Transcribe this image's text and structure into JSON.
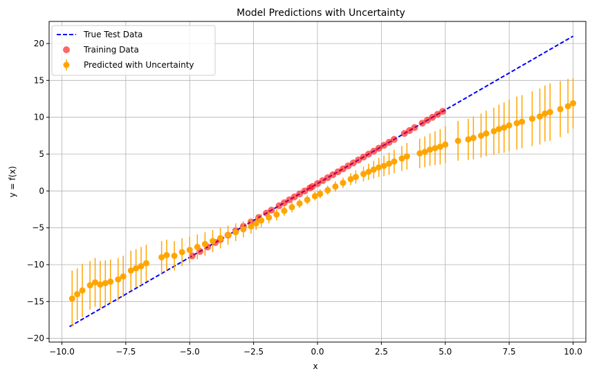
{
  "chart_data": {
    "type": "scatter",
    "title": "Model Predictions with Uncertainty",
    "xlabel": "x",
    "ylabel": "y = f(x)",
    "xlim": [
      -10.5,
      10.5
    ],
    "ylim": [
      -20.5,
      23
    ],
    "xticks": [
      -10.0,
      -7.5,
      -5.0,
      -2.5,
      0.0,
      2.5,
      5.0,
      7.5,
      10.0
    ],
    "xtick_labels": [
      "−10.0",
      "−7.5",
      "−5.0",
      "−2.5",
      "0.0",
      "2.5",
      "5.0",
      "7.5",
      "10.0"
    ],
    "yticks": [
      -20,
      -15,
      -10,
      -5,
      0,
      5,
      10,
      15,
      20
    ],
    "ytick_labels": [
      "−20",
      "−15",
      "−10",
      "−5",
      "0",
      "5",
      "10",
      "15",
      "20"
    ],
    "grid": true,
    "legend_position": "top-left",
    "colors": {
      "true_line": "#0000ff",
      "training": "#ff0000",
      "predicted": "#ffa500"
    },
    "legend": [
      {
        "name": "True Test Data",
        "kind": "line"
      },
      {
        "name": "Training Data",
        "kind": "scatter"
      },
      {
        "name": "Predicted with Uncertainty",
        "kind": "errorbar"
      }
    ],
    "true_line": {
      "name": "True Test Data",
      "x": [
        -9.7,
        10.0
      ],
      "y": [
        -18.4,
        21.0
      ]
    },
    "training": {
      "name": "Training Data",
      "x": [
        -4.9,
        -4.6,
        -4.3,
        -4.0,
        -3.8,
        -3.5,
        -3.2,
        -2.9,
        -2.6,
        -2.3,
        -2.0,
        -1.8,
        -1.5,
        -1.3,
        -1.1,
        -0.9,
        -0.7,
        -0.5,
        -0.3,
        -0.2,
        0.0,
        0.2,
        0.4,
        0.6,
        0.8,
        1.0,
        1.2,
        1.4,
        1.6,
        1.8,
        2.0,
        2.2,
        2.4,
        2.6,
        2.8,
        3.0,
        3.4,
        3.6,
        3.8,
        4.1,
        4.3,
        4.5,
        4.7,
        4.9
      ],
      "y": [
        -8.8,
        -8.2,
        -7.6,
        -7.0,
        -6.6,
        -6.0,
        -5.4,
        -4.8,
        -4.2,
        -3.6,
        -3.0,
        -2.6,
        -2.0,
        -1.6,
        -1.2,
        -0.8,
        -0.4,
        0.0,
        0.4,
        0.6,
        1.0,
        1.4,
        1.8,
        2.2,
        2.6,
        3.0,
        3.4,
        3.8,
        4.2,
        4.6,
        5.0,
        5.4,
        5.8,
        6.2,
        6.6,
        7.0,
        7.8,
        8.2,
        8.6,
        9.2,
        9.6,
        10.0,
        10.4,
        10.8
      ]
    },
    "predicted": {
      "name": "Predicted with Uncertainty",
      "x": [
        -9.6,
        -9.4,
        -9.2,
        -8.9,
        -8.7,
        -8.5,
        -8.3,
        -8.1,
        -7.8,
        -7.6,
        -7.3,
        -7.1,
        -6.9,
        -6.7,
        -6.1,
        -5.9,
        -5.6,
        -5.3,
        -5.0,
        -4.7,
        -4.4,
        -4.1,
        -3.8,
        -3.5,
        -3.2,
        -2.9,
        -2.6,
        -2.4,
        -2.2,
        -1.9,
        -1.6,
        -1.3,
        -1.0,
        -0.7,
        -0.4,
        -0.1,
        0.1,
        0.4,
        0.7,
        1.0,
        1.3,
        1.5,
        1.8,
        2.0,
        2.2,
        2.4,
        2.6,
        2.8,
        3.0,
        3.3,
        3.5,
        4.0,
        4.2,
        4.4,
        4.6,
        4.8,
        5.0,
        5.5,
        5.9,
        6.1,
        6.4,
        6.6,
        6.9,
        7.1,
        7.3,
        7.5,
        7.8,
        8.0,
        8.4,
        8.7,
        8.9,
        9.1,
        9.5,
        9.8,
        10.0
      ],
      "y": [
        -14.6,
        -14.0,
        -13.5,
        -12.8,
        -12.4,
        -12.7,
        -12.5,
        -12.3,
        -12.0,
        -11.6,
        -10.8,
        -10.5,
        -10.2,
        -9.8,
        -9.0,
        -8.7,
        -8.8,
        -8.3,
        -8.0,
        -7.6,
        -7.2,
        -6.8,
        -6.4,
        -6.0,
        -5.6,
        -5.2,
        -4.8,
        -4.4,
        -4.0,
        -3.6,
        -3.2,
        -2.7,
        -2.2,
        -1.7,
        -1.2,
        -0.7,
        -0.4,
        0.1,
        0.6,
        1.1,
        1.6,
        1.9,
        2.3,
        2.6,
        2.9,
        3.2,
        3.4,
        3.7,
        4.0,
        4.4,
        4.7,
        5.1,
        5.3,
        5.6,
        5.8,
        6.0,
        6.3,
        6.8,
        7.0,
        7.2,
        7.5,
        7.8,
        8.1,
        8.4,
        8.6,
        8.9,
        9.2,
        9.4,
        9.8,
        10.1,
        10.5,
        10.7,
        11.1,
        11.5,
        11.9
      ],
      "err": [
        3.8,
        3.5,
        3.6,
        3.3,
        3.3,
        3.2,
        3.1,
        3.0,
        2.9,
        2.8,
        2.7,
        2.6,
        2.6,
        2.5,
        2.2,
        2.1,
        2.0,
        1.9,
        1.8,
        1.7,
        1.6,
        1.5,
        1.4,
        1.3,
        1.2,
        1.1,
        1.0,
        0.9,
        0.9,
        0.8,
        0.8,
        0.7,
        0.7,
        0.6,
        0.6,
        0.6,
        0.6,
        0.6,
        0.7,
        0.7,
        0.8,
        0.9,
        1.0,
        1.1,
        1.2,
        1.3,
        1.4,
        1.5,
        1.6,
        1.7,
        1.8,
        2.0,
        2.1,
        2.2,
        2.3,
        2.4,
        2.5,
        2.7,
        2.8,
        2.9,
        3.0,
        3.1,
        3.2,
        3.3,
        3.4,
        3.5,
        3.6,
        3.6,
        3.7,
        3.8,
        3.8,
        3.9,
        3.8,
        3.7,
        3.4
      ]
    }
  }
}
